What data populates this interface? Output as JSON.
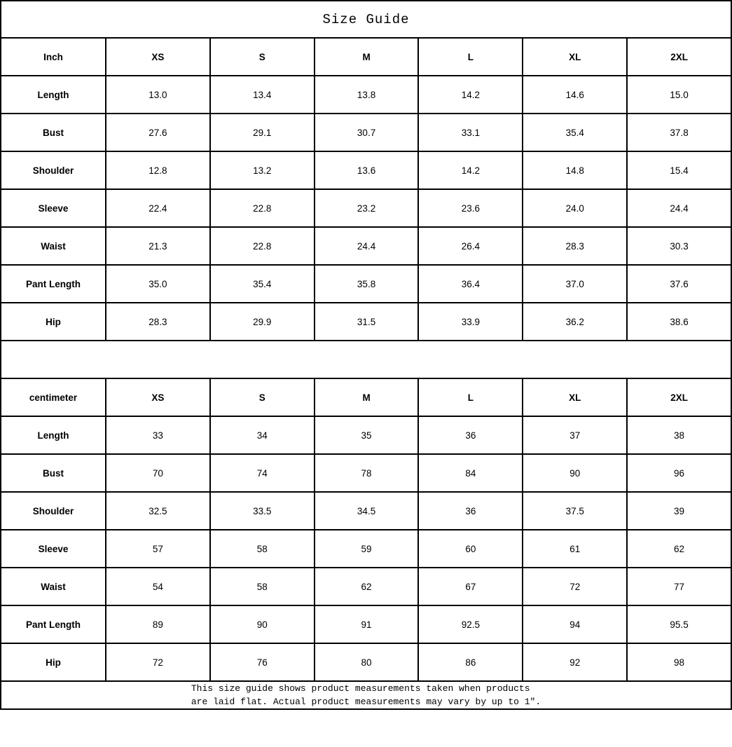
{
  "title": "Size Guide",
  "tables": [
    {
      "unit": "Inch",
      "sizes": [
        "XS",
        "S",
        "M",
        "L",
        "XL",
        "2XL"
      ],
      "rows": [
        {
          "label": "Length",
          "values": [
            "13.0",
            "13.4",
            "13.8",
            "14.2",
            "14.6",
            "15.0"
          ]
        },
        {
          "label": "Bust",
          "values": [
            "27.6",
            "29.1",
            "30.7",
            "33.1",
            "35.4",
            "37.8"
          ]
        },
        {
          "label": "Shoulder",
          "values": [
            "12.8",
            "13.2",
            "13.6",
            "14.2",
            "14.8",
            "15.4"
          ]
        },
        {
          "label": "Sleeve",
          "values": [
            "22.4",
            "22.8",
            "23.2",
            "23.6",
            "24.0",
            "24.4"
          ]
        },
        {
          "label": "Waist",
          "values": [
            "21.3",
            "22.8",
            "24.4",
            "26.4",
            "28.3",
            "30.3"
          ]
        },
        {
          "label": "Pant Length",
          "values": [
            "35.0",
            "35.4",
            "35.8",
            "36.4",
            "37.0",
            "37.6"
          ]
        },
        {
          "label": "Hip",
          "values": [
            "28.3",
            "29.9",
            "31.5",
            "33.9",
            "36.2",
            "38.6"
          ]
        }
      ]
    },
    {
      "unit": "centimeter",
      "sizes": [
        "XS",
        "S",
        "M",
        "L",
        "XL",
        "2XL"
      ],
      "rows": [
        {
          "label": "Length",
          "values": [
            "33",
            "34",
            "35",
            "36",
            "37",
            "38"
          ]
        },
        {
          "label": "Bust",
          "values": [
            "70",
            "74",
            "78",
            "84",
            "90",
            "96"
          ]
        },
        {
          "label": "Shoulder",
          "values": [
            "32.5",
            "33.5",
            "34.5",
            "36",
            "37.5",
            "39"
          ]
        },
        {
          "label": "Sleeve",
          "values": [
            "57",
            "58",
            "59",
            "60",
            "61",
            "62"
          ]
        },
        {
          "label": "Waist",
          "values": [
            "54",
            "58",
            "62",
            "67",
            "72",
            "77"
          ]
        },
        {
          "label": "Pant Length",
          "values": [
            "89",
            "90",
            "91",
            "92.5",
            "94",
            "95.5"
          ]
        },
        {
          "label": "Hip",
          "values": [
            "72",
            "76",
            "80",
            "86",
            "92",
            "98"
          ]
        }
      ]
    }
  ],
  "footer": {
    "line1": "This size guide shows product measurements taken when products",
    "line2": "are laid flat. Actual product measurements may vary by up to 1″."
  }
}
